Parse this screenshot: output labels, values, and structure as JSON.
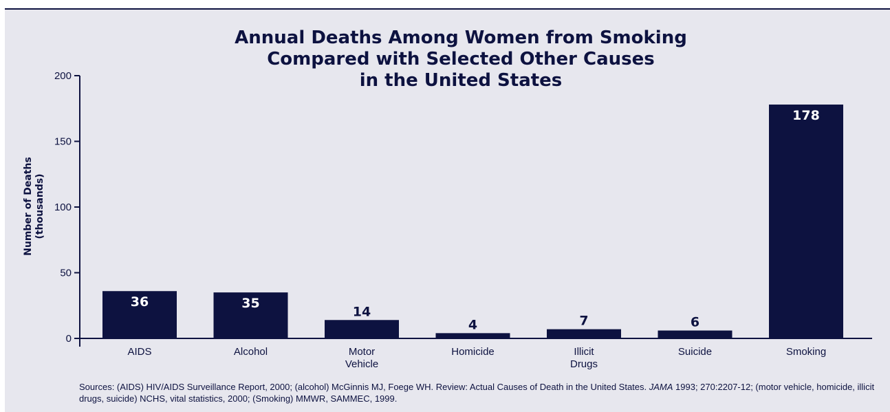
{
  "chart_data": {
    "type": "bar",
    "title": [
      "Annual Deaths Among Women from Smoking",
      "Compared with Selected Other Causes",
      "in the United States"
    ],
    "ylabel": [
      "Number of Deaths",
      "(thousands)"
    ],
    "xlabel": "",
    "ylim": [
      0,
      200
    ],
    "yticks": [
      0,
      50,
      100,
      150,
      200
    ],
    "categories": [
      [
        "AIDS"
      ],
      [
        "Alcohol"
      ],
      [
        "Motor",
        "Vehicle"
      ],
      [
        "Homicide"
      ],
      [
        "Illicit",
        "Drugs"
      ],
      [
        "Suicide"
      ],
      [
        "Smoking"
      ]
    ],
    "values": [
      36,
      35,
      14,
      4,
      7,
      6,
      178
    ],
    "data_labels": [
      "36",
      "35",
      "14",
      "4",
      "7",
      "6",
      "178"
    ],
    "grid": false,
    "legend": "none",
    "bar_color": "#0d1240"
  },
  "sources": {
    "part1": "Sources: (AIDS) HIV/AIDS Surveillance Report, 2000; (alcohol) McGinnis MJ, Foege WH. Review: Actual Causes of Death in the United States. ",
    "journal": "JAMA",
    "part2": " 1993; 270:2207-12; (motor vehicle, homicide, illicit drugs, suicide) NCHS, vital statistics, 2000; (Smoking) MMWR, SAMMEC, 1999."
  }
}
